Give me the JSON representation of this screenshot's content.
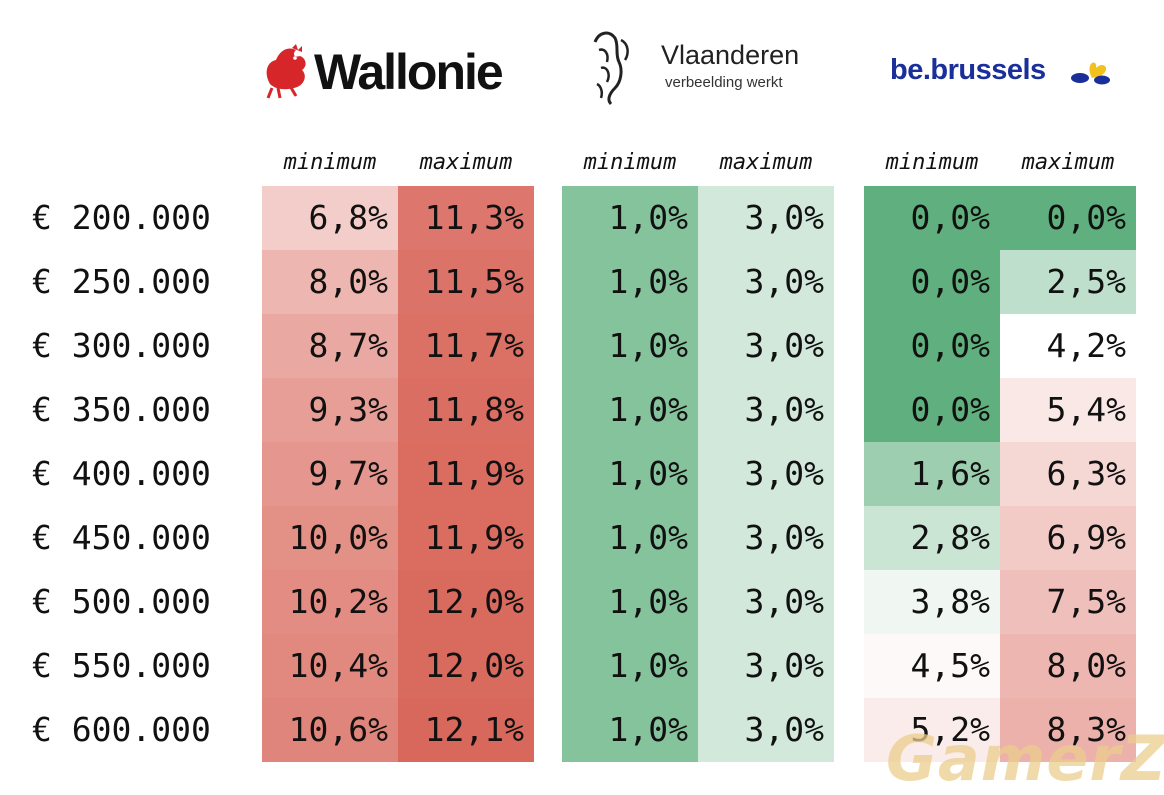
{
  "logos": {
    "wallonie": "Wallonie",
    "vlaanderen_title": "Vlaanderen",
    "vlaanderen_tagline": "verbeelding werkt",
    "brussels": "be.brussels"
  },
  "headers": [
    "minimum",
    "maximum",
    "minimum",
    "maximum",
    "minimum",
    "maximum"
  ],
  "watermark": "GamerZ",
  "chart_data": {
    "type": "table",
    "rows": [
      "€ 200.000",
      "€ 250.000",
      "€ 300.000",
      "€ 350.000",
      "€ 400.000",
      "€ 450.000",
      "€ 500.000",
      "€ 550.000",
      "€ 600.000"
    ],
    "columns": [
      {
        "region": "Wallonie",
        "label": "minimum",
        "values": [
          "6,8%",
          "8,0%",
          "8,7%",
          "9,3%",
          "9,7%",
          "10,0%",
          "10,2%",
          "10,4%",
          "10,6%"
        ]
      },
      {
        "region": "Wallonie",
        "label": "maximum",
        "values": [
          "11,3%",
          "11,5%",
          "11,7%",
          "11,8%",
          "11,9%",
          "11,9%",
          "12,0%",
          "12,0%",
          "12,1%"
        ]
      },
      {
        "region": "Vlaanderen",
        "label": "minimum",
        "values": [
          "1,0%",
          "1,0%",
          "1,0%",
          "1,0%",
          "1,0%",
          "1,0%",
          "1,0%",
          "1,0%",
          "1,0%"
        ]
      },
      {
        "region": "Vlaanderen",
        "label": "maximum",
        "values": [
          "3,0%",
          "3,0%",
          "3,0%",
          "3,0%",
          "3,0%",
          "3,0%",
          "3,0%",
          "3,0%",
          "3,0%"
        ]
      },
      {
        "region": "be.brussels",
        "label": "minimum",
        "values": [
          "0,0%",
          "0,0%",
          "0,0%",
          "0,0%",
          "1,6%",
          "2,8%",
          "3,8%",
          "4,5%",
          "5,2%"
        ]
      },
      {
        "region": "be.brussels",
        "label": "maximum",
        "values": [
          "0,0%",
          "2,5%",
          "4,2%",
          "5,4%",
          "6,3%",
          "6,9%",
          "7,5%",
          "8,0%",
          "8,3%"
        ]
      }
    ],
    "colors": {
      "red": "#d9685c",
      "green": "#5fb07e",
      "white": "#ffffff"
    }
  }
}
